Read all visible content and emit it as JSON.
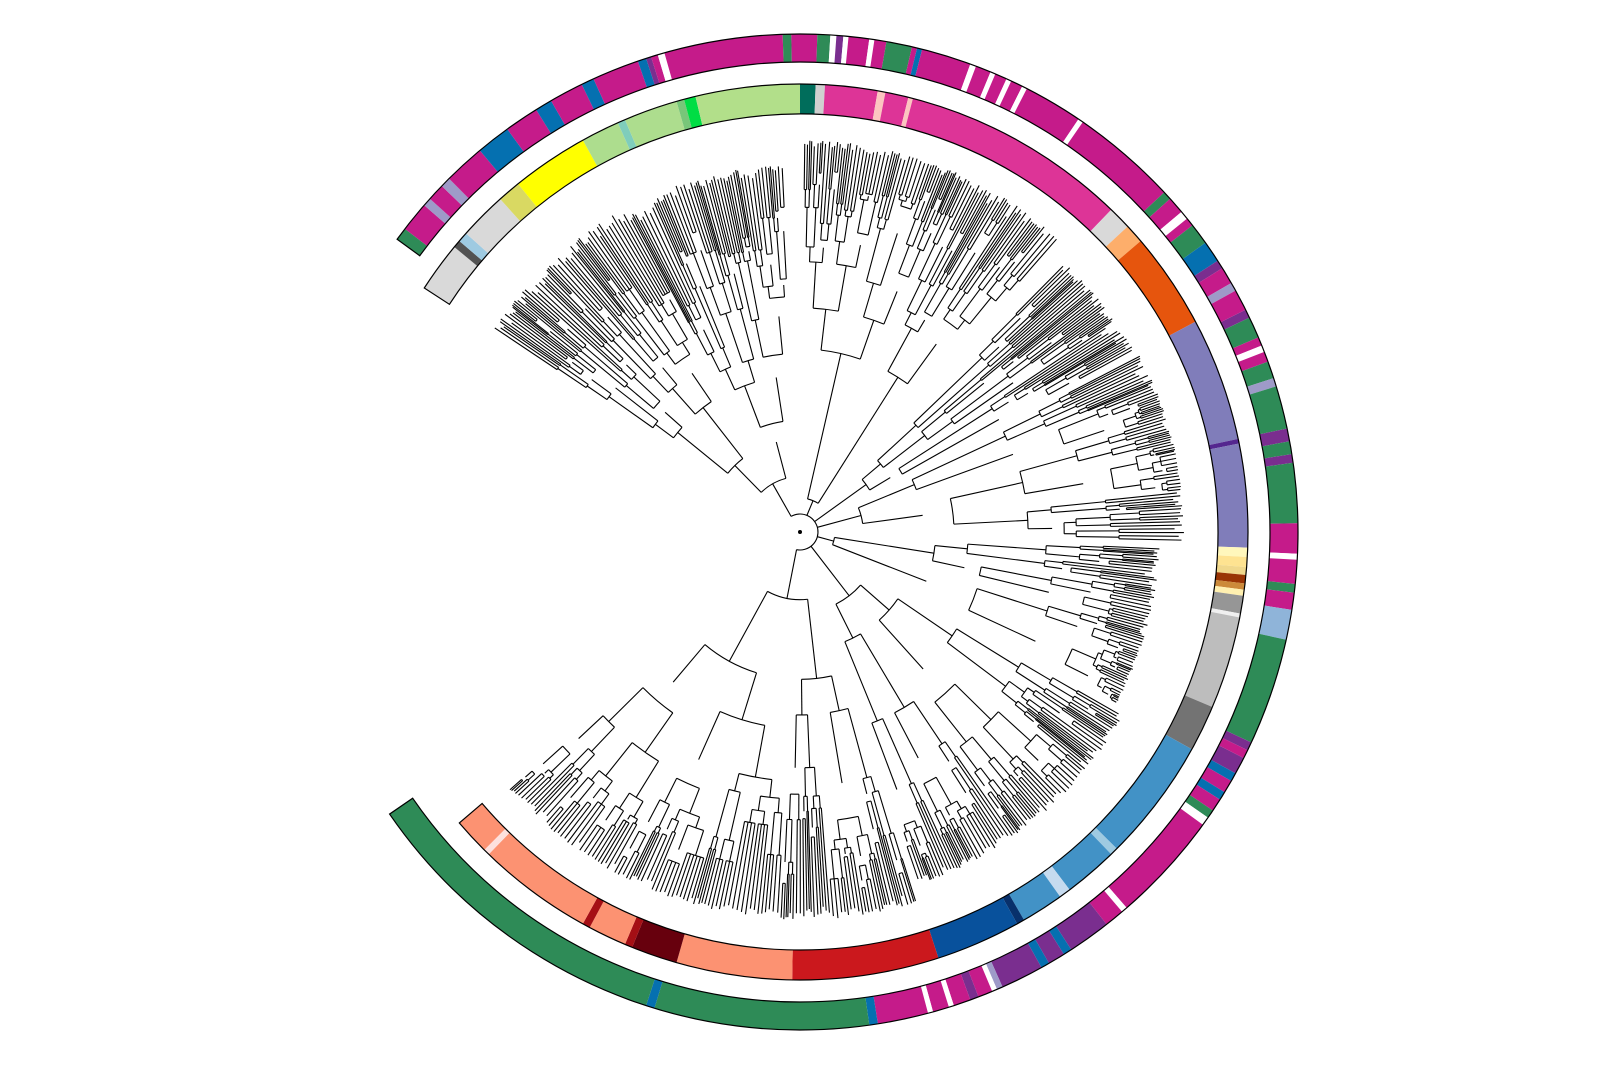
{
  "figure": {
    "type": "circular-phylogenetic-tree",
    "background": "#ffffff",
    "branch_color": "#000000",
    "ring_border_color": "#000000",
    "gap_at_angle_deg": 210
  },
  "rings": {
    "inner": {
      "name": "inner-clade-ring",
      "segments": [
        {
          "start": 213.0,
          "end": 219.5,
          "color": "#d9d9d9"
        },
        {
          "start": 219.5,
          "end": 220.5,
          "color": "#525252"
        },
        {
          "start": 220.5,
          "end": 221.8,
          "color": "#9ecae1"
        },
        {
          "start": 221.8,
          "end": 228.0,
          "color": "#d9d9d9"
        },
        {
          "start": 228.0,
          "end": 231.0,
          "color": "#d9d962"
        },
        {
          "start": 231.0,
          "end": 241.0,
          "color": "#ffff00"
        },
        {
          "start": 241.0,
          "end": 246.0,
          "color": "#addd8e"
        },
        {
          "start": 246.0,
          "end": 247.0,
          "color": "#7fcdbb"
        },
        {
          "start": 247.0,
          "end": 254.0,
          "color": "#addd8e"
        },
        {
          "start": 254.0,
          "end": 255.0,
          "color": "#78c679"
        },
        {
          "start": 255.0,
          "end": 256.5,
          "color": "#00dd44"
        },
        {
          "start": 256.5,
          "end": 270.0,
          "color": "#b2df8a"
        },
        {
          "start": 270.0,
          "end": 272.0,
          "color": "#006d5b"
        },
        {
          "start": 272.0,
          "end": 273.2,
          "color": "#d0d0d0"
        },
        {
          "start": 273.2,
          "end": 280.0,
          "color": "#dd3497"
        },
        {
          "start": 280.0,
          "end": 281.0,
          "color": "#fcc5c0"
        },
        {
          "start": 281.0,
          "end": 284.0,
          "color": "#dd3497"
        },
        {
          "start": 284.0,
          "end": 284.6,
          "color": "#fcc5c0"
        },
        {
          "start": 284.6,
          "end": 314.0,
          "color": "#dd3497"
        },
        {
          "start": 314.0,
          "end": 317.0,
          "color": "#d9d9d9"
        },
        {
          "start": 317.0,
          "end": 319.5,
          "color": "#fdae6b"
        },
        {
          "start": 319.5,
          "end": 332.0,
          "color": "#e6550d"
        },
        {
          "start": 332.0,
          "end": 348.0,
          "color": "#807dba"
        },
        {
          "start": 348.0,
          "end": 348.6,
          "color": "#54278f"
        },
        {
          "start": 348.6,
          "end": 362.0,
          "color": "#807dba"
        },
        {
          "start": 362.0,
          "end": 363.2,
          "color": "#fff7bc"
        },
        {
          "start": 363.2,
          "end": 364.5,
          "color": "#fee391"
        },
        {
          "start": 364.5,
          "end": 365.5,
          "color": "#f0d88c"
        },
        {
          "start": 365.5,
          "end": 366.6,
          "color": "#993404"
        },
        {
          "start": 366.6,
          "end": 367.4,
          "color": "#cc8a3a"
        },
        {
          "start": 367.4,
          "end": 368.2,
          "color": "#fff0b0"
        },
        {
          "start": 368.2,
          "end": 370.5,
          "color": "#969696"
        },
        {
          "start": 370.5,
          "end": 371.0,
          "color": "#f0f0f0"
        },
        {
          "start": 371.0,
          "end": 383.0,
          "color": "#bdbdbd"
        },
        {
          "start": 383.0,
          "end": 389.0,
          "color": "#737373"
        },
        {
          "start": 389.0,
          "end": 405.0,
          "color": "#4292c6"
        },
        {
          "start": 405.0,
          "end": 406.0,
          "color": "#9ecae1"
        },
        {
          "start": 406.0,
          "end": 413.0,
          "color": "#4292c6"
        },
        {
          "start": 413.0,
          "end": 414.5,
          "color": "#c6dbef"
        },
        {
          "start": 414.5,
          "end": 420.0,
          "color": "#4292c6"
        },
        {
          "start": 420.0,
          "end": 421.0,
          "color": "#08306b"
        },
        {
          "start": 421.0,
          "end": 432.0,
          "color": "#08519c"
        },
        {
          "start": 432.0,
          "end": 451.0,
          "color": "#cb181d"
        },
        {
          "start": 451.0,
          "end": 466.0,
          "color": "#fc9272"
        },
        {
          "start": 466.0,
          "end": 472.0,
          "color": "#67000d"
        },
        {
          "start": 472.0,
          "end": 473.0,
          "color": "#a50f15"
        },
        {
          "start": 473.0,
          "end": 478.0,
          "color": "#fc9272"
        },
        {
          "start": 478.0,
          "end": 479.0,
          "color": "#a50f15"
        },
        {
          "start": 479.0,
          "end": 494.0,
          "color": "#fc9272"
        },
        {
          "start": 494.0,
          "end": 494.8,
          "color": "#fde0dd"
        },
        {
          "start": 494.8,
          "end": 499.5,
          "color": "#fc9272"
        }
      ]
    },
    "outer": {
      "name": "outer-annotation-ring",
      "segments": [
        {
          "start": 216.0,
          "end": 217.5,
          "color": "#2e8b57"
        },
        {
          "start": 217.5,
          "end": 221.0,
          "color": "#c51b8a"
        },
        {
          "start": 221.0,
          "end": 222.0,
          "color": "#9e9ac8"
        },
        {
          "start": 222.0,
          "end": 224.0,
          "color": "#c51b8a"
        },
        {
          "start": 224.0,
          "end": 225.2,
          "color": "#9e9ac8"
        },
        {
          "start": 225.2,
          "end": 230.0,
          "color": "#c51b8a"
        },
        {
          "start": 230.0,
          "end": 234.0,
          "color": "#0570b0"
        },
        {
          "start": 234.0,
          "end": 238.0,
          "color": "#c51b8a"
        },
        {
          "start": 238.0,
          "end": 240.0,
          "color": "#0570b0"
        },
        {
          "start": 240.0,
          "end": 244.0,
          "color": "#c51b8a"
        },
        {
          "start": 244.0,
          "end": 245.5,
          "color": "#0570b0"
        },
        {
          "start": 245.5,
          "end": 251.0,
          "color": "#c51b8a"
        },
        {
          "start": 251.0,
          "end": 252.0,
          "color": "#0570b0"
        },
        {
          "start": 252.0,
          "end": 252.6,
          "color": "#7a2e8f"
        },
        {
          "start": 252.6,
          "end": 253.4,
          "color": "#c51b8a"
        },
        {
          "start": 253.4,
          "end": 254.2,
          "color": "#ffffff"
        },
        {
          "start": 254.2,
          "end": 268.0,
          "color": "#c51b8a"
        },
        {
          "start": 268.0,
          "end": 269.0,
          "color": "#2e8b57"
        },
        {
          "start": 269.0,
          "end": 272.0,
          "color": "#c51b8a"
        },
        {
          "start": 272.0,
          "end": 273.5,
          "color": "#2e8b57"
        },
        {
          "start": 273.5,
          "end": 274.2,
          "color": "#ffffff"
        },
        {
          "start": 274.2,
          "end": 275.0,
          "color": "#7a2e8f"
        },
        {
          "start": 275.0,
          "end": 275.6,
          "color": "#ffffff"
        },
        {
          "start": 275.6,
          "end": 278.0,
          "color": "#c51b8a"
        },
        {
          "start": 278.0,
          "end": 278.6,
          "color": "#ffffff"
        },
        {
          "start": 278.6,
          "end": 280.0,
          "color": "#c51b8a"
        },
        {
          "start": 280.0,
          "end": 283.0,
          "color": "#2e8b57"
        },
        {
          "start": 283.0,
          "end": 283.6,
          "color": "#c51b8a"
        },
        {
          "start": 283.6,
          "end": 284.2,
          "color": "#0570b0"
        },
        {
          "start": 284.2,
          "end": 290.0,
          "color": "#c51b8a"
        },
        {
          "start": 290.0,
          "end": 290.7,
          "color": "#ffffff"
        },
        {
          "start": 290.7,
          "end": 292.5,
          "color": "#c51b8a"
        },
        {
          "start": 292.5,
          "end": 293.1,
          "color": "#ffffff"
        },
        {
          "start": 293.1,
          "end": 294.5,
          "color": "#c51b8a"
        },
        {
          "start": 294.5,
          "end": 295.1,
          "color": "#ffffff"
        },
        {
          "start": 295.1,
          "end": 296.5,
          "color": "#c51b8a"
        },
        {
          "start": 296.5,
          "end": 297.1,
          "color": "#ffffff"
        },
        {
          "start": 297.1,
          "end": 304.0,
          "color": "#c51b8a"
        },
        {
          "start": 304.0,
          "end": 304.6,
          "color": "#ffffff"
        },
        {
          "start": 304.6,
          "end": 317.0,
          "color": "#c51b8a"
        },
        {
          "start": 317.0,
          "end": 318.0,
          "color": "#2e8b57"
        },
        {
          "start": 318.0,
          "end": 320.0,
          "color": "#c51b8a"
        },
        {
          "start": 320.0,
          "end": 321.0,
          "color": "#ffffff"
        },
        {
          "start": 321.0,
          "end": 322.0,
          "color": "#c51b8a"
        },
        {
          "start": 322.0,
          "end": 324.5,
          "color": "#2e8b57"
        },
        {
          "start": 324.5,
          "end": 327.0,
          "color": "#0570b0"
        },
        {
          "start": 327.0,
          "end": 328.0,
          "color": "#7a2e8f"
        },
        {
          "start": 328.0,
          "end": 330.0,
          "color": "#c51b8a"
        },
        {
          "start": 330.0,
          "end": 331.0,
          "color": "#9e9ac8"
        },
        {
          "start": 331.0,
          "end": 333.5,
          "color": "#c51b8a"
        },
        {
          "start": 333.5,
          "end": 334.5,
          "color": "#7a2e8f"
        },
        {
          "start": 334.5,
          "end": 337.0,
          "color": "#2e8b57"
        },
        {
          "start": 337.0,
          "end": 338.0,
          "color": "#c51b8a"
        },
        {
          "start": 338.0,
          "end": 338.8,
          "color": "#ffffff"
        },
        {
          "start": 338.8,
          "end": 340.0,
          "color": "#c51b8a"
        },
        {
          "start": 340.0,
          "end": 342.0,
          "color": "#2e8b57"
        },
        {
          "start": 342.0,
          "end": 343.0,
          "color": "#9e9ac8"
        },
        {
          "start": 343.0,
          "end": 348.0,
          "color": "#2e8b57"
        },
        {
          "start": 348.0,
          "end": 349.5,
          "color": "#7a2e8f"
        },
        {
          "start": 349.5,
          "end": 351.0,
          "color": "#2e8b57"
        },
        {
          "start": 351.0,
          "end": 352.0,
          "color": "#7a2e8f"
        },
        {
          "start": 352.0,
          "end": 359.0,
          "color": "#2e8b57"
        },
        {
          "start": 359.0,
          "end": 362.5,
          "color": "#c51b8a"
        },
        {
          "start": 362.5,
          "end": 363.2,
          "color": "#ffffff"
        },
        {
          "start": 363.2,
          "end": 366.0,
          "color": "#c51b8a"
        },
        {
          "start": 366.0,
          "end": 367.0,
          "color": "#2e8b57"
        },
        {
          "start": 367.0,
          "end": 369.0,
          "color": "#c51b8a"
        },
        {
          "start": 369.0,
          "end": 372.5,
          "color": "#8fb4d9"
        },
        {
          "start": 372.5,
          "end": 385.0,
          "color": "#2e8b57"
        },
        {
          "start": 385.0,
          "end": 386.0,
          "color": "#7a2e8f"
        },
        {
          "start": 386.0,
          "end": 387.0,
          "color": "#c51b8a"
        },
        {
          "start": 387.0,
          "end": 389.0,
          "color": "#7a2e8f"
        },
        {
          "start": 389.0,
          "end": 390.0,
          "color": "#0570b0"
        },
        {
          "start": 390.0,
          "end": 391.5,
          "color": "#c51b8a"
        },
        {
          "start": 391.5,
          "end": 392.5,
          "color": "#0570b0"
        },
        {
          "start": 392.5,
          "end": 394.0,
          "color": "#c51b8a"
        },
        {
          "start": 394.0,
          "end": 395.0,
          "color": "#2e8b57"
        },
        {
          "start": 395.0,
          "end": 396.0,
          "color": "#ffffff"
        },
        {
          "start": 396.0,
          "end": 409.0,
          "color": "#c51b8a"
        },
        {
          "start": 409.0,
          "end": 409.7,
          "color": "#ffffff"
        },
        {
          "start": 409.7,
          "end": 412.0,
          "color": "#c51b8a"
        },
        {
          "start": 412.0,
          "end": 417.0,
          "color": "#7a2e8f"
        },
        {
          "start": 417.0,
          "end": 418.0,
          "color": "#0570b0"
        },
        {
          "start": 418.0,
          "end": 420.0,
          "color": "#7a2e8f"
        },
        {
          "start": 420.0,
          "end": 421.0,
          "color": "#0570b0"
        },
        {
          "start": 421.0,
          "end": 426.0,
          "color": "#7a2e8f"
        },
        {
          "start": 426.0,
          "end": 426.7,
          "color": "#9e9ac8"
        },
        {
          "start": 426.7,
          "end": 427.3,
          "color": "#ffffff"
        },
        {
          "start": 427.3,
          "end": 429.0,
          "color": "#c51b8a"
        },
        {
          "start": 429.0,
          "end": 430.0,
          "color": "#7a2e8f"
        },
        {
          "start": 430.0,
          "end": 432.0,
          "color": "#c51b8a"
        },
        {
          "start": 432.0,
          "end": 432.6,
          "color": "#ffffff"
        },
        {
          "start": 432.6,
          "end": 434.5,
          "color": "#c51b8a"
        },
        {
          "start": 434.5,
          "end": 435.1,
          "color": "#ffffff"
        },
        {
          "start": 435.1,
          "end": 441.0,
          "color": "#c51b8a"
        },
        {
          "start": 441.0,
          "end": 442.0,
          "color": "#0570b0"
        },
        {
          "start": 442.0,
          "end": 467.0,
          "color": "#2e8b57"
        },
        {
          "start": 467.0,
          "end": 468.0,
          "color": "#0570b0"
        },
        {
          "start": 468.0,
          "end": 505.5,
          "color": "#2e8b57"
        }
      ]
    }
  },
  "tree": {
    "center": "root",
    "clades": [
      {
        "name": "clade-yellow-green",
        "start": 213,
        "end": 268,
        "depth": 0.92
      },
      {
        "name": "clade-magenta",
        "start": 270,
        "end": 312,
        "depth": 0.98
      },
      {
        "name": "clade-orange",
        "start": 314,
        "end": 332,
        "depth": 0.95
      },
      {
        "name": "clade-purple",
        "start": 332,
        "end": 362,
        "depth": 0.96
      },
      {
        "name": "clade-brown-grey",
        "start": 362,
        "end": 389,
        "depth": 0.9
      },
      {
        "name": "clade-blue",
        "start": 389,
        "end": 432,
        "depth": 0.93
      },
      {
        "name": "clade-red",
        "start": 432,
        "end": 499,
        "depth": 0.97
      }
    ]
  }
}
